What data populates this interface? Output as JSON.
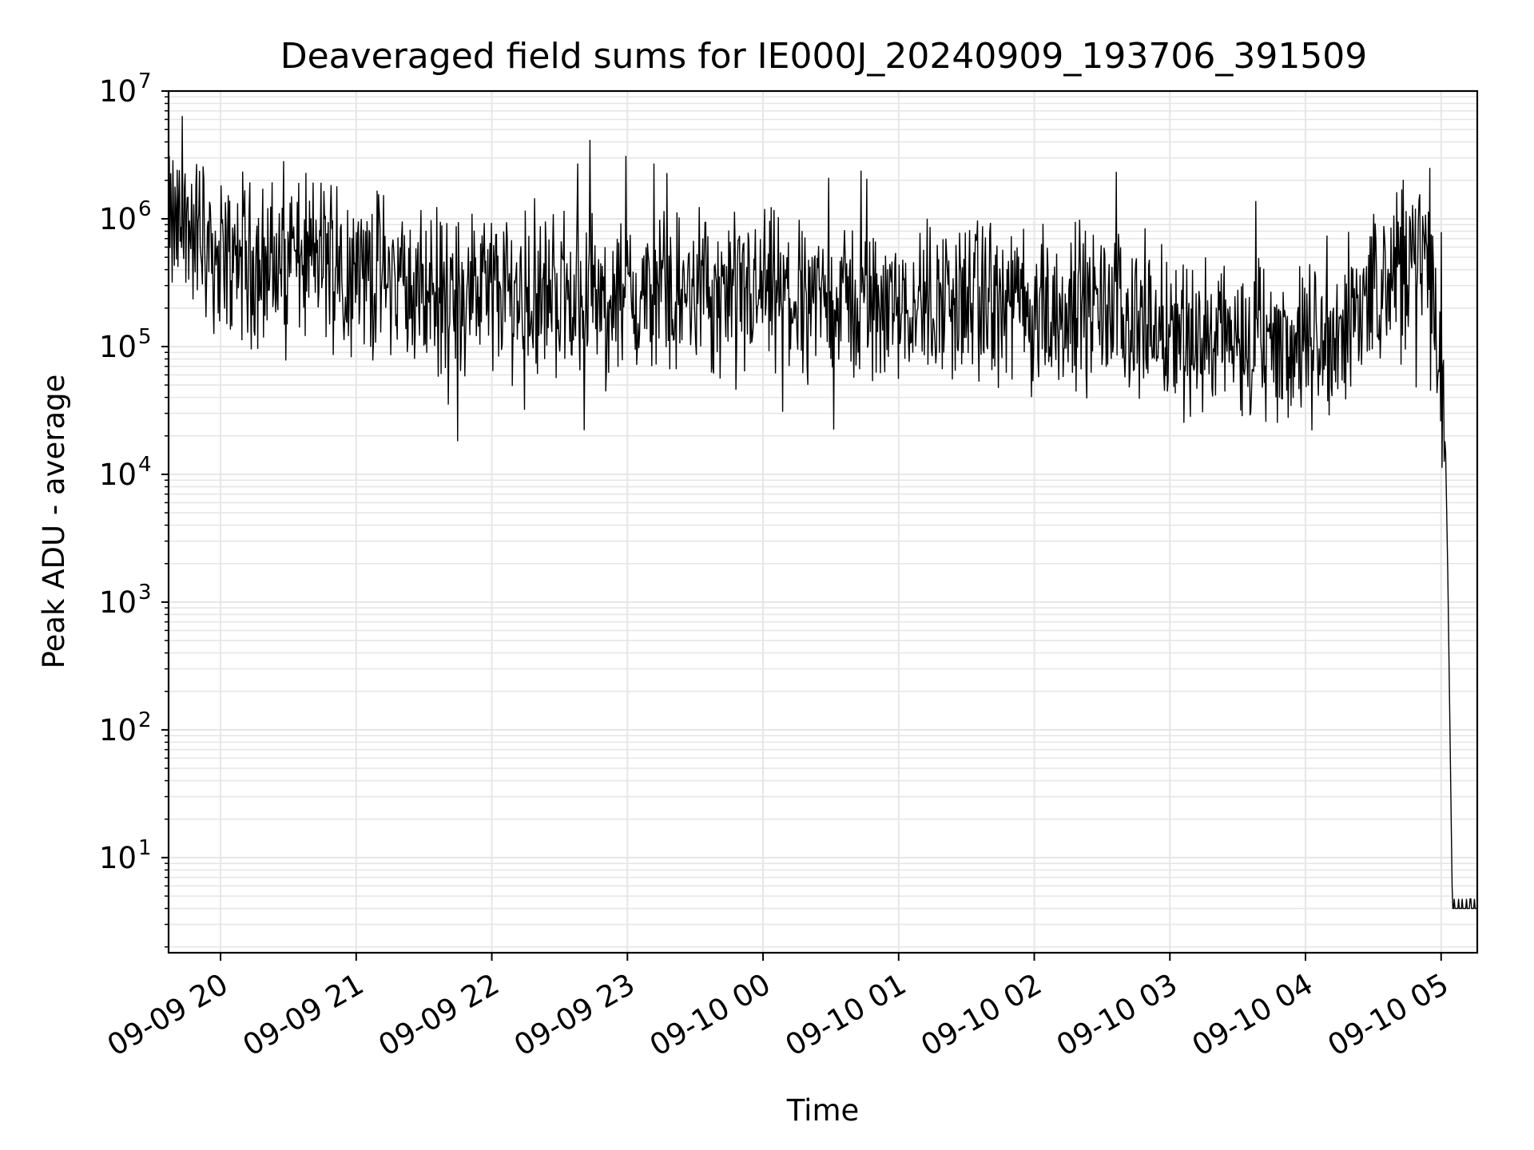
{
  "chart_data": {
    "type": "line",
    "title": "Deaveraged field sums for IE000J_20240909_193706_391509",
    "xlabel": "Time",
    "ylabel": "Peak ADU - average",
    "y_scale": "log",
    "ylim": [
      1.8,
      10000000
    ],
    "xlim": [
      "2024-09-09 19:37",
      "2024-09-10 05:16"
    ],
    "grid": true,
    "legend": "none",
    "line_color": "#000000",
    "grid_color": "#e6e6e6",
    "x_ticks": [
      {
        "label": "09-09 20",
        "t": "2024-09-09 20:00"
      },
      {
        "label": "09-09 21",
        "t": "2024-09-09 21:00"
      },
      {
        "label": "09-09 22",
        "t": "2024-09-09 22:00"
      },
      {
        "label": "09-09 23",
        "t": "2024-09-09 23:00"
      },
      {
        "label": "09-10 00",
        "t": "2024-09-10 00:00"
      },
      {
        "label": "09-10 01",
        "t": "2024-09-10 01:00"
      },
      {
        "label": "09-10 02",
        "t": "2024-09-10 02:00"
      },
      {
        "label": "09-10 03",
        "t": "2024-09-10 03:00"
      },
      {
        "label": "09-10 04",
        "t": "2024-09-10 04:00"
      },
      {
        "label": "09-10 05",
        "t": "2024-09-10 05:00"
      }
    ],
    "y_ticks": [
      {
        "base": "10",
        "exp": "1",
        "value": 10
      },
      {
        "base": "10",
        "exp": "2",
        "value": 100
      },
      {
        "base": "10",
        "exp": "3",
        "value": 1000
      },
      {
        "base": "10",
        "exp": "4",
        "value": 10000
      },
      {
        "base": "10",
        "exp": "5",
        "value": 100000
      },
      {
        "base": "10",
        "exp": "6",
        "value": 1000000
      },
      {
        "base": "10",
        "exp": "7",
        "value": 10000000
      }
    ],
    "series": [
      {
        "x": [
          "2024-09-09 19:37",
          "2024-09-09 19:45",
          "2024-09-09 19:52",
          "2024-09-09 20:00",
          "2024-09-09 20:15",
          "2024-09-09 20:30",
          "2024-09-09 20:45",
          "2024-09-09 21:00",
          "2024-09-09 21:15",
          "2024-09-09 21:30",
          "2024-09-09 21:45",
          "2024-09-09 22:00",
          "2024-09-09 22:15",
          "2024-09-09 22:30",
          "2024-09-09 22:45",
          "2024-09-09 23:00",
          "2024-09-09 23:15",
          "2024-09-09 23:30",
          "2024-09-09 23:45",
          "2024-09-10 00:00",
          "2024-09-10 00:15",
          "2024-09-10 00:30",
          "2024-09-10 00:45",
          "2024-09-10 01:00",
          "2024-09-10 01:15",
          "2024-09-10 01:30",
          "2024-09-10 01:45",
          "2024-09-10 02:00",
          "2024-09-10 02:15",
          "2024-09-10 02:30",
          "2024-09-10 02:45",
          "2024-09-10 03:00",
          "2024-09-10 03:15",
          "2024-09-10 03:30",
          "2024-09-10 03:45",
          "2024-09-10 04:00",
          "2024-09-10 04:15",
          "2024-09-10 04:30",
          "2024-09-10 04:45",
          "2024-09-10 04:55",
          "2024-09-10 05:00",
          "2024-09-10 05:02",
          "2024-09-10 05:03",
          "2024-09-10 05:05",
          "2024-09-10 05:10",
          "2024-09-10 05:16"
        ],
        "y": [
          800000,
          900000,
          700000,
          500000,
          450000,
          420000,
          520000,
          380000,
          350000,
          260000,
          250000,
          300000,
          250000,
          270000,
          250000,
          230000,
          240000,
          260000,
          230000,
          260000,
          240000,
          230000,
          220000,
          240000,
          230000,
          230000,
          220000,
          180000,
          200000,
          190000,
          170000,
          140000,
          120000,
          110000,
          105000,
          100000,
          130000,
          300000,
          500000,
          600000,
          50000,
          15000,
          1500,
          4,
          4,
          4
        ]
      }
    ]
  }
}
